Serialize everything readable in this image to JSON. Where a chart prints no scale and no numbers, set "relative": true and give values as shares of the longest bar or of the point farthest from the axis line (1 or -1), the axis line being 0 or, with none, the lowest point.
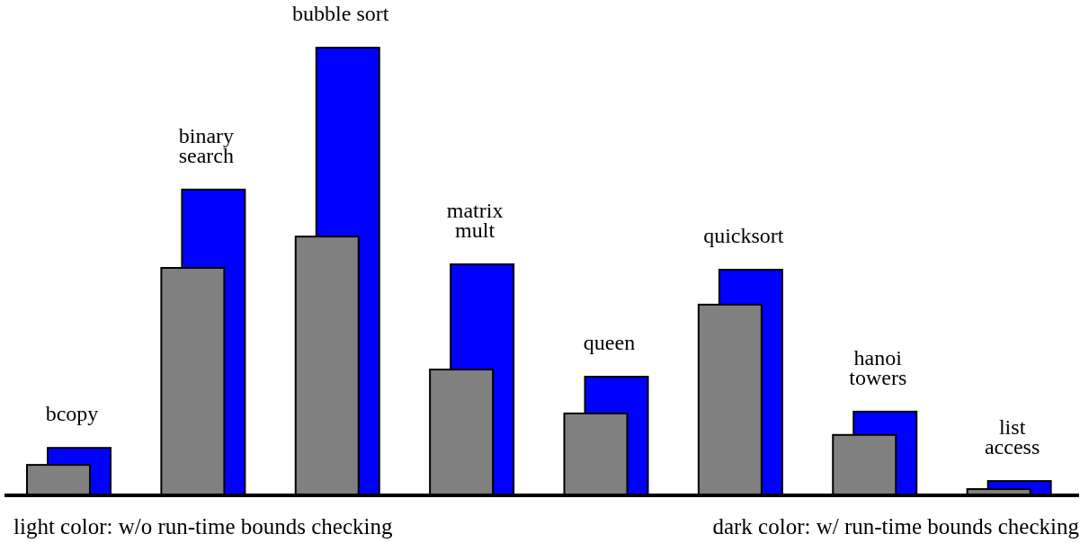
{
  "chart_data": {
    "type": "bar",
    "relative": true,
    "categories": [
      "bcopy",
      "binary\nsearch",
      "bubble sort",
      "matrix\nmult",
      "queen",
      "quicksort",
      "hanoi\ntowers",
      "list\naccess"
    ],
    "series": [
      {
        "color": "#808080",
        "values": [
          0.068,
          0.508,
          0.578,
          0.281,
          0.183,
          0.426,
          0.135,
          0.014
        ]
      },
      {
        "color": "#0000ff",
        "values": [
          0.106,
          0.683,
          1,
          0.516,
          0.265,
          0.504,
          0.187,
          0.032
        ]
      }
    ],
    "annotations": [
      "light color: w/o run-time bounds checking",
      "dark color: w/ run-time bounds checking"
    ]
  }
}
